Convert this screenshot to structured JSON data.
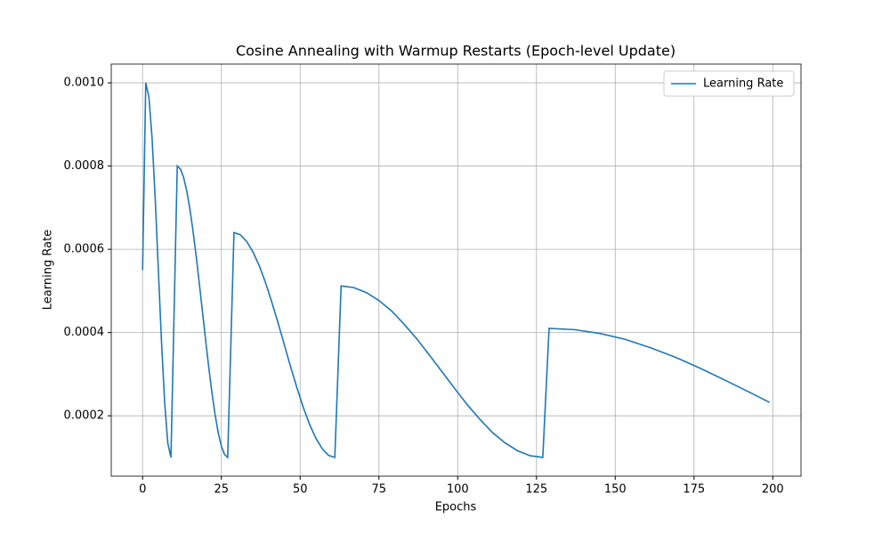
{
  "chart_data": {
    "type": "line",
    "title": "Cosine Annealing with Warmup Restarts (Epoch-level Update)",
    "xlabel": "Epochs",
    "ylabel": "Learning Rate",
    "x": [
      0,
      1,
      2,
      3,
      4,
      5,
      6,
      7,
      8,
      9,
      10,
      11,
      12,
      13,
      14,
      15,
      16,
      17,
      18,
      19,
      20,
      21,
      22,
      23,
      24,
      25,
      26,
      27,
      28,
      29,
      31,
      33,
      35,
      37,
      39,
      41,
      43,
      45,
      47,
      49,
      51,
      53,
      55,
      57,
      59,
      61,
      62,
      63,
      67,
      71,
      75,
      79,
      83,
      87,
      91,
      95,
      99,
      103,
      107,
      111,
      115,
      119,
      123,
      127,
      128,
      129,
      137,
      145,
      153,
      161,
      169,
      177,
      185,
      193,
      199
    ],
    "series": [
      {
        "name": "Learning Rate",
        "color": "#1f77b4",
        "values": [
          0.00055,
          0.001,
          0.000966,
          0.000868,
          0.000722,
          0.00055,
          0.000378,
          0.000232,
          0.000134,
          0.0001,
          0.00045,
          0.0008,
          0.000793,
          0.000773,
          0.000741,
          0.000697,
          0.000644,
          0.000584,
          0.000518,
          0.00045,
          0.000382,
          0.000316,
          0.000256,
          0.000203,
          0.000159,
          0.000127,
          0.000107,
          0.0001,
          0.00037,
          0.00064,
          0.000635,
          0.000619,
          0.000594,
          0.000561,
          0.00052,
          0.000473,
          0.000423,
          0.00037,
          0.000317,
          0.000267,
          0.00022,
          0.000179,
          0.000146,
          0.000121,
          0.000105,
          0.0001,
          0.000306,
          0.000512,
          0.000508,
          0.000496,
          0.000477,
          0.000452,
          0.00042,
          0.000385,
          0.000346,
          0.000306,
          0.000266,
          0.000227,
          0.000192,
          0.00016,
          0.000135,
          0.000116,
          0.000104,
          0.0001,
          0.000255,
          0.00041,
          0.000407,
          0.000398,
          0.000384,
          0.000364,
          0.000341,
          0.000314,
          0.000285,
          0.000255,
          0.000232
        ]
      }
    ],
    "xlim": [
      -9.95,
      208.95
    ],
    "ylim": [
      5.5e-05,
      0.001045
    ],
    "xticks": [
      0,
      25,
      50,
      75,
      100,
      125,
      150,
      175,
      200
    ],
    "yticks": [
      0.0002,
      0.0004,
      0.0006,
      0.0008,
      {
        "value": 0.001,
        "label": "0.0010"
      }
    ],
    "grid": true,
    "legend": "upper right"
  }
}
